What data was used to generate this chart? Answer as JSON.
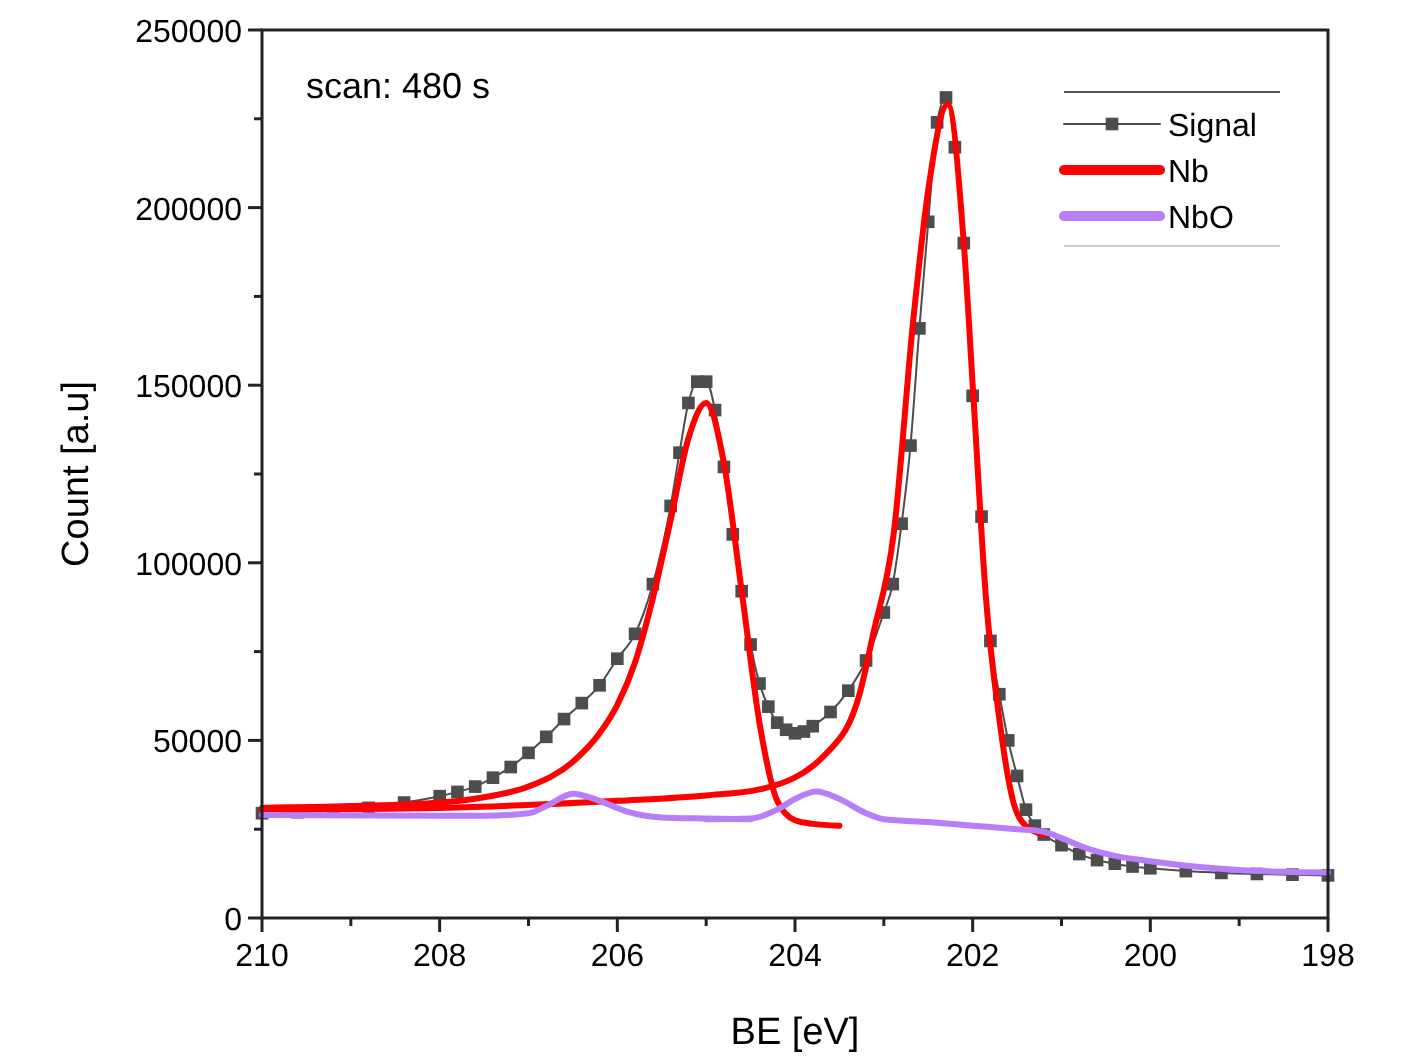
{
  "chart_data": {
    "type": "line",
    "xlabel": "BE [eV]",
    "ylabel": "Count [a.u]",
    "annotations": [
      "scan: 480 s"
    ],
    "xlim": [
      210,
      198
    ],
    "xticks": [
      210,
      {
        "value": 209,
        "label": null
      },
      208,
      {
        "value": 207,
        "label": null
      },
      206,
      {
        "value": 205,
        "label": null
      },
      204,
      {
        "value": 203,
        "label": null
      },
      202,
      {
        "value": 201,
        "label": null
      },
      200,
      {
        "value": 199,
        "label": null
      },
      198
    ],
    "ylim": [
      0,
      250000
    ],
    "yticks": [
      0,
      {
        "value": 25000,
        "label": null
      },
      50000,
      {
        "value": 75000,
        "label": null
      },
      100000,
      {
        "value": 125000,
        "label": null
      },
      150000,
      {
        "value": 175000,
        "label": null
      },
      200000,
      {
        "value": 225000,
        "label": null
      },
      250000
    ],
    "grid": false,
    "legend": "top right",
    "series": [
      {
        "name": "Signal",
        "color": "#4d4d4d",
        "marker": "square",
        "x": [
          210,
          209.6,
          209.2,
          208.8,
          208.4,
          208.0,
          207.8,
          207.6,
          207.4,
          207.2,
          207.0,
          206.8,
          206.6,
          206.4,
          206.2,
          206.0,
          205.8,
          205.6,
          205.4,
          205.3,
          205.2,
          205.1,
          205.0,
          204.9,
          204.8,
          204.7,
          204.6,
          204.5,
          204.4,
          204.3,
          204.2,
          204.1,
          204.0,
          203.9,
          203.8,
          203.6,
          203.4,
          203.2,
          203.0,
          202.9,
          202.8,
          202.7,
          202.6,
          202.5,
          202.4,
          202.3,
          202.2,
          202.1,
          202.0,
          201.9,
          201.8,
          201.7,
          201.6,
          201.5,
          201.4,
          201.3,
          201.2,
          201.0,
          200.8,
          200.6,
          200.4,
          200.2,
          200.0,
          199.6,
          199.2,
          198.8,
          198.4,
          198.0
        ],
        "values": [
          29500,
          29800,
          30300,
          31000,
          32500,
          34300,
          35500,
          37000,
          39500,
          42500,
          46500,
          51000,
          56000,
          60500,
          65500,
          73000,
          80000,
          94000,
          116000,
          131000,
          145000,
          151000,
          151000,
          143000,
          127000,
          108000,
          92000,
          77000,
          66000,
          59500,
          55000,
          53000,
          52000,
          52500,
          54000,
          58000,
          64000,
          72500,
          86000,
          94000,
          111000,
          133000,
          166000,
          196000,
          224000,
          231000,
          217000,
          190000,
          147000,
          113000,
          78000,
          63000,
          50000,
          40000,
          30500,
          26000,
          23500,
          20500,
          18000,
          16300,
          15300,
          14500,
          14000,
          13200,
          12700,
          12400,
          12200,
          12000
        ]
      },
      {
        "name": "Nb",
        "color": "#ff0000",
        "x": [
          210,
          209,
          208,
          207.5,
          207,
          206.5,
          206.2,
          206,
          205.8,
          205.6,
          205.4,
          205.2,
          205.0,
          204.8,
          204.6,
          204.4,
          204.2,
          204.0,
          203.8,
          203.5
        ],
        "values": [
          31000,
          31500,
          32500,
          34000,
          37000,
          44000,
          52000,
          60000,
          72000,
          90000,
          112000,
          135000,
          145000,
          128000,
          92000,
          55000,
          33000,
          27500,
          26500,
          26000
        ]
      },
      {
        "color": "#ff0000",
        "x": [
          210,
          208,
          206,
          205,
          204.4,
          203.64,
          203.27,
          203.12,
          202.89,
          202.67,
          202.5,
          202.28,
          202.1,
          201.99,
          201.85,
          201.7,
          201.55,
          201.4,
          201.2
        ],
        "values": [
          30500,
          31000,
          33000,
          34500,
          36200,
          46500,
          63300,
          80000,
          108000,
          168000,
          205000,
          229000,
          190000,
          146000,
          90000,
          56000,
          33400,
          25900,
          23500
        ]
      },
      {
        "name": "NbO",
        "color": "#b77ef7",
        "x": [
          210,
          208,
          207.5,
          207,
          206.8,
          206.5,
          206.2,
          205.9,
          205.5,
          205,
          204.5
        ],
        "values": [
          29000,
          28800,
          28800,
          29500,
          31500,
          35000,
          33000,
          30000,
          28300,
          28000,
          27800
        ]
      },
      {
        "color": "#b77ef7",
        "x": [
          205,
          204.5,
          204.2,
          204,
          203.76,
          203.5,
          203.2,
          203,
          202.5,
          202,
          201.5,
          201.2,
          201,
          200.7,
          200.4,
          200,
          199.5,
          199,
          198.5,
          198
        ],
        "values": [
          27800,
          28000,
          30500,
          33500,
          35600,
          33500,
          29500,
          27800,
          27000,
          26000,
          25000,
          24300,
          22500,
          19500,
          17500,
          16000,
          14500,
          13500,
          13000,
          12800
        ]
      }
    ]
  }
}
